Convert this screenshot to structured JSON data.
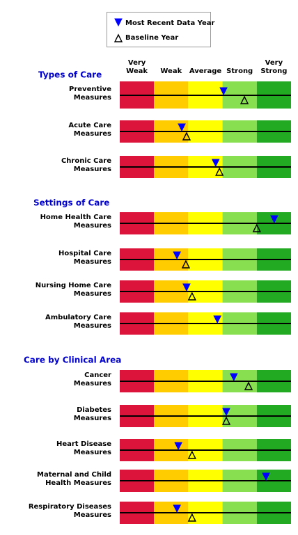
{
  "chart_data": {
    "type": "meter",
    "xlim": [
      0,
      5
    ],
    "bands": [
      {
        "label": [
          "Very",
          "Weak"
        ],
        "color": "#dc143c"
      },
      {
        "label": [
          "Weak"
        ],
        "color": "#ffcc00"
      },
      {
        "label": [
          "Average"
        ],
        "color": "#ffff00"
      },
      {
        "label": [
          "Strong"
        ],
        "color": "#88e050"
      },
      {
        "label": [
          "Very",
          "Strong"
        ],
        "color": "#22aa22"
      }
    ],
    "series": [
      {
        "name": "Most Recent Data Year",
        "color": "#0000ff",
        "marker": "down-filled"
      },
      {
        "name": "Baseline Year",
        "color": "#000000",
        "marker": "up-open"
      }
    ],
    "groups": [
      {
        "title": "Types of Care",
        "rows": [
          {
            "label": [
              "Preventive",
              "Measures"
            ],
            "values": [
              3.03,
              3.64
            ]
          },
          {
            "label": [
              "Acute Care",
              "Measures"
            ],
            "values": [
              1.81,
              1.95
            ]
          },
          {
            "label": [
              "Chronic Care",
              "Measures"
            ],
            "values": [
              2.8,
              2.91
            ]
          }
        ]
      },
      {
        "title": "Settings of Care",
        "rows": [
          {
            "label": [
              "Home Health Care",
              "Measures"
            ],
            "values": [
              4.51,
              4.0
            ]
          },
          {
            "label": [
              "Hospital Care",
              "Measures"
            ],
            "values": [
              1.67,
              1.93
            ]
          },
          {
            "label": [
              "Nursing Home Care",
              "Measures"
            ],
            "values": [
              1.95,
              2.11
            ]
          },
          {
            "label": [
              "Ambulatory Care",
              "Measures"
            ],
            "values": [
              2.85,
              null
            ]
          }
        ]
      },
      {
        "title": "Care by Clinical Area",
        "rows": [
          {
            "label": [
              "Cancer",
              "Measures"
            ],
            "values": [
              3.33,
              3.76
            ]
          },
          {
            "label": [
              "Diabetes",
              "Measures"
            ],
            "values": [
              3.11,
              3.11
            ]
          },
          {
            "label": [
              "Heart Disease",
              "Measures"
            ],
            "values": [
              1.71,
              2.11
            ]
          },
          {
            "label": [
              "Maternal and Child",
              "Health Measures"
            ],
            "values": [
              4.27,
              null
            ]
          },
          {
            "label": [
              "Respiratory Diseases",
              "Measures"
            ],
            "values": [
              1.67,
              2.11
            ]
          }
        ]
      }
    ]
  }
}
